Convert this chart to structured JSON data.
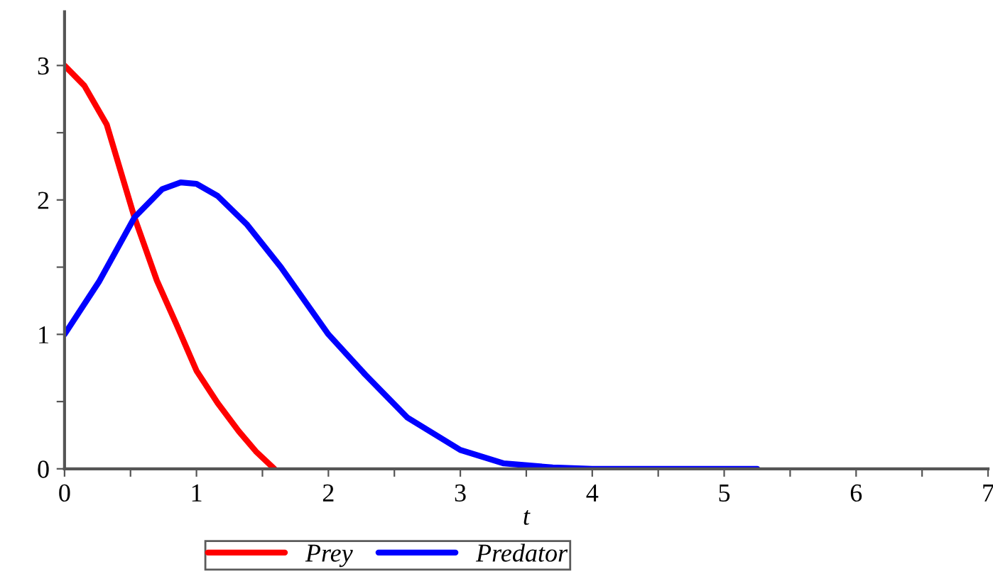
{
  "chart_data": {
    "type": "line",
    "xlabel": "t",
    "xlim": [
      0,
      7
    ],
    "ylim": [
      0,
      3.4
    ],
    "xticks": [
      0,
      {
        "value": 0.5,
        "label": null
      },
      1,
      {
        "value": 1.5,
        "label": null
      },
      2,
      {
        "value": 2.5,
        "label": null
      },
      3,
      {
        "value": 3.5,
        "label": null
      },
      4,
      {
        "value": 4.5,
        "label": null
      },
      5,
      {
        "value": 5.5,
        "label": null
      },
      6,
      {
        "value": 6.5,
        "label": null
      },
      7
    ],
    "yticks": [
      0,
      {
        "value": 0.5,
        "label": null
      },
      1,
      {
        "value": 1.5,
        "label": null
      },
      2,
      {
        "value": 2.5,
        "label": null
      },
      3
    ],
    "grid": false,
    "legend": "bottom",
    "line_style": "solid",
    "marker": "none",
    "series": [
      {
        "name": "Prey",
        "color": "#ff0000",
        "x": [
          0,
          0.15,
          0.32,
          0.53,
          0.7,
          0.85,
          1.0,
          1.16,
          1.32,
          1.45,
          1.59
        ],
        "values": [
          3,
          2.85,
          2.56,
          1.87,
          1.4,
          1.07,
          0.73,
          0.49,
          0.28,
          0.13,
          0
        ]
      },
      {
        "name": "Predator",
        "color": "#0000ff",
        "x": [
          0,
          0.26,
          0.53,
          0.74,
          0.88,
          1.0,
          1.16,
          1.38,
          1.64,
          2.0,
          2.28,
          2.6,
          3.0,
          3.33,
          3.7,
          4.0,
          5.25
        ],
        "values": [
          1,
          1.39,
          1.87,
          2.08,
          2.13,
          2.12,
          2.03,
          1.82,
          1.5,
          1.0,
          0.7,
          0.38,
          0.14,
          0.04,
          0.01,
          0,
          0
        ]
      }
    ]
  }
}
